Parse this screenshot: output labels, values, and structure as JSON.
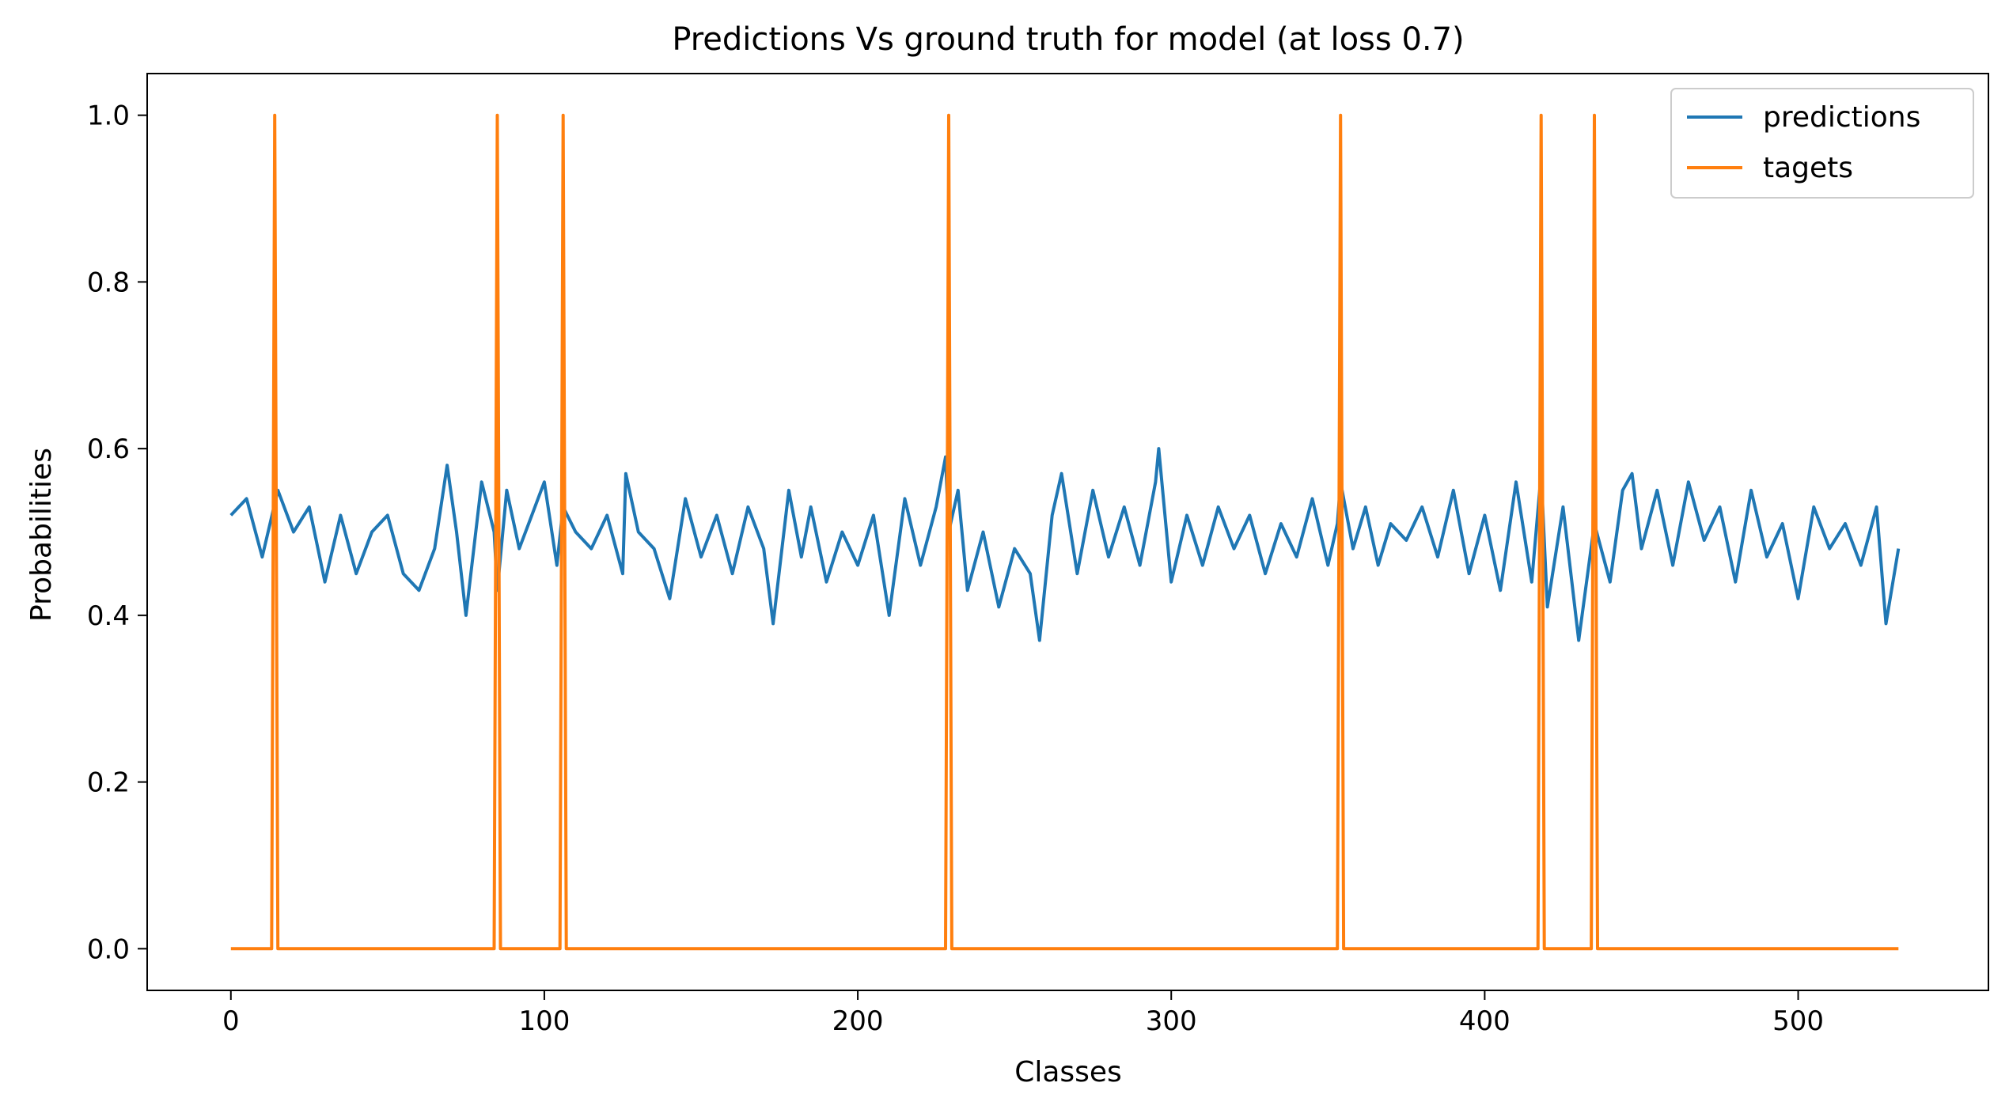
{
  "chart_data": {
    "type": "line",
    "title": "Predictions Vs ground truth for model (at loss 0.7)",
    "xlabel": "Classes",
    "ylabel": "Probabilities",
    "xlim": [
      -26.7,
      560.7
    ],
    "ylim": [
      -0.05,
      1.05
    ],
    "xticks": [
      0,
      100,
      200,
      300,
      400,
      500
    ],
    "yticks": [
      0.0,
      0.2,
      0.4,
      0.6,
      0.8,
      1.0
    ],
    "xtick_labels": [
      "0",
      "100",
      "200",
      "300",
      "400",
      "500"
    ],
    "ytick_labels": [
      "0.0",
      "0.2",
      "0.4",
      "0.6",
      "0.8",
      "1.0"
    ],
    "grid": false,
    "legend_position": "top-right",
    "series": [
      {
        "name": "predictions",
        "color": "#1f77b4",
        "x": [
          0,
          5,
          10,
          15,
          20,
          25,
          30,
          35,
          40,
          45,
          50,
          55,
          60,
          65,
          69,
          72,
          75,
          80,
          84,
          85,
          88,
          92,
          96,
          100,
          104,
          106,
          110,
          115,
          120,
          125,
          126,
          130,
          135,
          140,
          145,
          150,
          155,
          160,
          165,
          170,
          173,
          178,
          182,
          185,
          190,
          195,
          200,
          205,
          210,
          215,
          220,
          225,
          228,
          229,
          232,
          235,
          240,
          245,
          250,
          255,
          258,
          262,
          265,
          270,
          275,
          280,
          285,
          290,
          295,
          296,
          300,
          305,
          310,
          315,
          320,
          325,
          330,
          335,
          340,
          345,
          350,
          353,
          354,
          358,
          362,
          366,
          370,
          375,
          380,
          385,
          390,
          395,
          400,
          405,
          410,
          415,
          418,
          420,
          425,
          430,
          435,
          440,
          444,
          447,
          450,
          455,
          460,
          465,
          470,
          475,
          480,
          485,
          490,
          495,
          500,
          505,
          510,
          515,
          520,
          525,
          528,
          532
        ],
        "y": [
          0.52,
          0.54,
          0.47,
          0.55,
          0.5,
          0.53,
          0.44,
          0.52,
          0.45,
          0.5,
          0.52,
          0.45,
          0.43,
          0.48,
          0.58,
          0.5,
          0.4,
          0.56,
          0.5,
          0.43,
          0.55,
          0.48,
          0.52,
          0.56,
          0.46,
          0.53,
          0.5,
          0.48,
          0.52,
          0.45,
          0.57,
          0.5,
          0.48,
          0.42,
          0.54,
          0.47,
          0.52,
          0.45,
          0.53,
          0.48,
          0.39,
          0.55,
          0.47,
          0.53,
          0.44,
          0.5,
          0.46,
          0.52,
          0.4,
          0.54,
          0.46,
          0.53,
          0.59,
          0.5,
          0.55,
          0.43,
          0.5,
          0.41,
          0.48,
          0.45,
          0.37,
          0.52,
          0.57,
          0.45,
          0.55,
          0.47,
          0.53,
          0.46,
          0.56,
          0.6,
          0.44,
          0.52,
          0.46,
          0.53,
          0.48,
          0.52,
          0.45,
          0.51,
          0.47,
          0.54,
          0.46,
          0.51,
          0.56,
          0.48,
          0.53,
          0.46,
          0.51,
          0.49,
          0.53,
          0.47,
          0.55,
          0.45,
          0.52,
          0.43,
          0.56,
          0.44,
          0.57,
          0.41,
          0.53,
          0.37,
          0.51,
          0.44,
          0.55,
          0.57,
          0.48,
          0.55,
          0.46,
          0.56,
          0.49,
          0.53,
          0.44,
          0.55,
          0.47,
          0.51,
          0.42,
          0.53,
          0.48,
          0.51,
          0.46,
          0.53,
          0.39,
          0.48
        ]
      },
      {
        "name": "tagets",
        "color": "#ff7f0e",
        "x": [
          0,
          13,
          14,
          15,
          84,
          85,
          86,
          105,
          106,
          107,
          228,
          229,
          230,
          353,
          354,
          355,
          417,
          418,
          419,
          434,
          435,
          436,
          532
        ],
        "y": [
          0,
          0,
          1,
          0,
          0,
          1,
          0,
          0,
          1,
          0,
          0,
          1,
          0,
          0,
          1,
          0,
          0,
          1,
          0,
          0,
          1,
          0,
          0
        ]
      }
    ]
  }
}
